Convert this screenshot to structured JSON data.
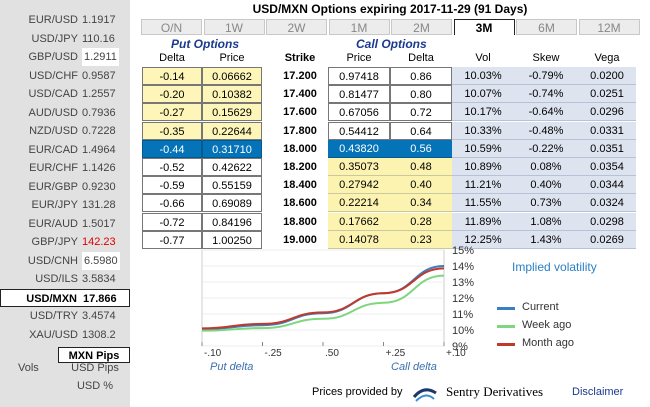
{
  "title": "USD/MXN Options expiring 2017-11-29 (91 Days)",
  "pairs": [
    {
      "symbol": "EUR/USD",
      "value": "1.1917",
      "style": "normal"
    },
    {
      "symbol": "USD/JPY",
      "value": "110.16",
      "style": "green"
    },
    {
      "symbol": "GBP/USD",
      "value": "1.2911",
      "style": "red"
    },
    {
      "symbol": "USD/CHF",
      "value": "0.9587",
      "style": "normal"
    },
    {
      "symbol": "USD/CAD",
      "value": "1.2557",
      "style": "normal"
    },
    {
      "symbol": "AUD/USD",
      "value": "0.7936",
      "style": "normal"
    },
    {
      "symbol": "NZD/USD",
      "value": "0.7228",
      "style": "normal"
    },
    {
      "symbol": "EUR/CAD",
      "value": "1.4964",
      "style": "normal"
    },
    {
      "symbol": "EUR/CHF",
      "value": "1.1426",
      "style": "normal"
    },
    {
      "symbol": "EUR/GBP",
      "value": "0.9230",
      "style": "normal"
    },
    {
      "symbol": "EUR/JPY",
      "value": "131.28",
      "style": "green"
    },
    {
      "symbol": "EUR/AUD",
      "value": "1.5017",
      "style": "green"
    },
    {
      "symbol": "GBP/JPY",
      "value": "142.23",
      "style": "redtext"
    },
    {
      "symbol": "USD/CNH",
      "value": "6.5980",
      "style": "red"
    },
    {
      "symbol": "USD/ILS",
      "value": "3.5834",
      "style": "normal"
    },
    {
      "symbol": "USD/MXN",
      "value": "17.866",
      "style": "selected"
    },
    {
      "symbol": "USD/TRY",
      "value": "3.4574",
      "style": "normal"
    },
    {
      "symbol": "XAU/USD",
      "value": "1308.2",
      "style": "green"
    }
  ],
  "mxn_pips": "MXN Pips",
  "vols_label": "Vols",
  "vols_options": [
    "USD Pips",
    "USD %"
  ],
  "tabs": [
    "O/N",
    "1W",
    "2W",
    "1M",
    "2M",
    "3M",
    "6M",
    "12M"
  ],
  "active_tab": "3M",
  "sections": {
    "put": "Put Options",
    "call": "Call Options"
  },
  "headers": [
    "Delta",
    "Price",
    "Strike",
    "Price",
    "Delta",
    "Vol",
    "Skew",
    "Vega"
  ],
  "rows": [
    {
      "put_delta": "-0.14",
      "put_price": "0.06662",
      "strike": "17.200",
      "call_price": "0.97418",
      "call_delta": "0.86",
      "vol": "10.03%",
      "skew": "-0.79%",
      "vega": "0.0200"
    },
    {
      "put_delta": "-0.20",
      "put_price": "0.10382",
      "strike": "17.400",
      "call_price": "0.81477",
      "call_delta": "0.80",
      "vol": "10.07%",
      "skew": "-0.74%",
      "vega": "0.0251"
    },
    {
      "put_delta": "-0.27",
      "put_price": "0.15629",
      "strike": "17.600",
      "call_price": "0.67056",
      "call_delta": "0.72",
      "vol": "10.17%",
      "skew": "-0.64%",
      "vega": "0.0296"
    },
    {
      "put_delta": "-0.35",
      "put_price": "0.22644",
      "strike": "17.800",
      "call_price": "0.54412",
      "call_delta": "0.64",
      "vol": "10.33%",
      "skew": "-0.48%",
      "vega": "0.0331"
    },
    {
      "put_delta": "-0.44",
      "put_price": "0.31710",
      "strike": "18.000",
      "call_price": "0.43820",
      "call_delta": "0.56",
      "vol": "10.59%",
      "skew": "-0.22%",
      "vega": "0.0351"
    },
    {
      "put_delta": "-0.52",
      "put_price": "0.42622",
      "strike": "18.200",
      "call_price": "0.35073",
      "call_delta": "0.48",
      "vol": "10.89%",
      "skew": "0.08%",
      "vega": "0.0354"
    },
    {
      "put_delta": "-0.59",
      "put_price": "0.55159",
      "strike": "18.400",
      "call_price": "0.27942",
      "call_delta": "0.40",
      "vol": "11.21%",
      "skew": "0.40%",
      "vega": "0.0344"
    },
    {
      "put_delta": "-0.66",
      "put_price": "0.69089",
      "strike": "18.600",
      "call_price": "0.22214",
      "call_delta": "0.34",
      "vol": "11.55%",
      "skew": "0.73%",
      "vega": "0.0324"
    },
    {
      "put_delta": "-0.72",
      "put_price": "0.84196",
      "strike": "18.800",
      "call_price": "0.17662",
      "call_delta": "0.28",
      "vol": "11.89%",
      "skew": "1.08%",
      "vega": "0.0298"
    },
    {
      "put_delta": "-0.77",
      "put_price": "1.00250",
      "strike": "19.000",
      "call_price": "0.14078",
      "call_delta": "0.23",
      "vol": "12.25%",
      "skew": "1.43%",
      "vega": "0.0269"
    }
  ],
  "selected_row": 4,
  "chart_data": {
    "type": "line",
    "title": "Implied volatility",
    "x_tick_labels": [
      "-.10",
      "-.25",
      ".50",
      "+.25",
      "+.10"
    ],
    "x_group_labels": [
      "Put delta",
      "Call delta"
    ],
    "y_tick_labels": [
      "9%",
      "10%",
      "11%",
      "12%",
      "13%",
      "14%",
      "15%"
    ],
    "ylim": [
      9,
      15
    ],
    "x": [
      0,
      1,
      2,
      3,
      4
    ],
    "series": [
      {
        "name": "Current",
        "color": "#3a7fc4",
        "values": [
          10.05,
          10.3,
          11.05,
          12.3,
          14.0
        ]
      },
      {
        "name": "Week ago",
        "color": "#7fd67f",
        "values": [
          9.95,
          10.12,
          10.7,
          11.7,
          13.4
        ]
      },
      {
        "name": "Month ago",
        "color": "#c0392b",
        "values": [
          10.1,
          10.38,
          11.1,
          12.3,
          13.85
        ]
      }
    ]
  },
  "footer": {
    "provided_by": "Prices provided by",
    "provider": "Sentry Derivatives",
    "disclaimer": "Disclaimer"
  }
}
